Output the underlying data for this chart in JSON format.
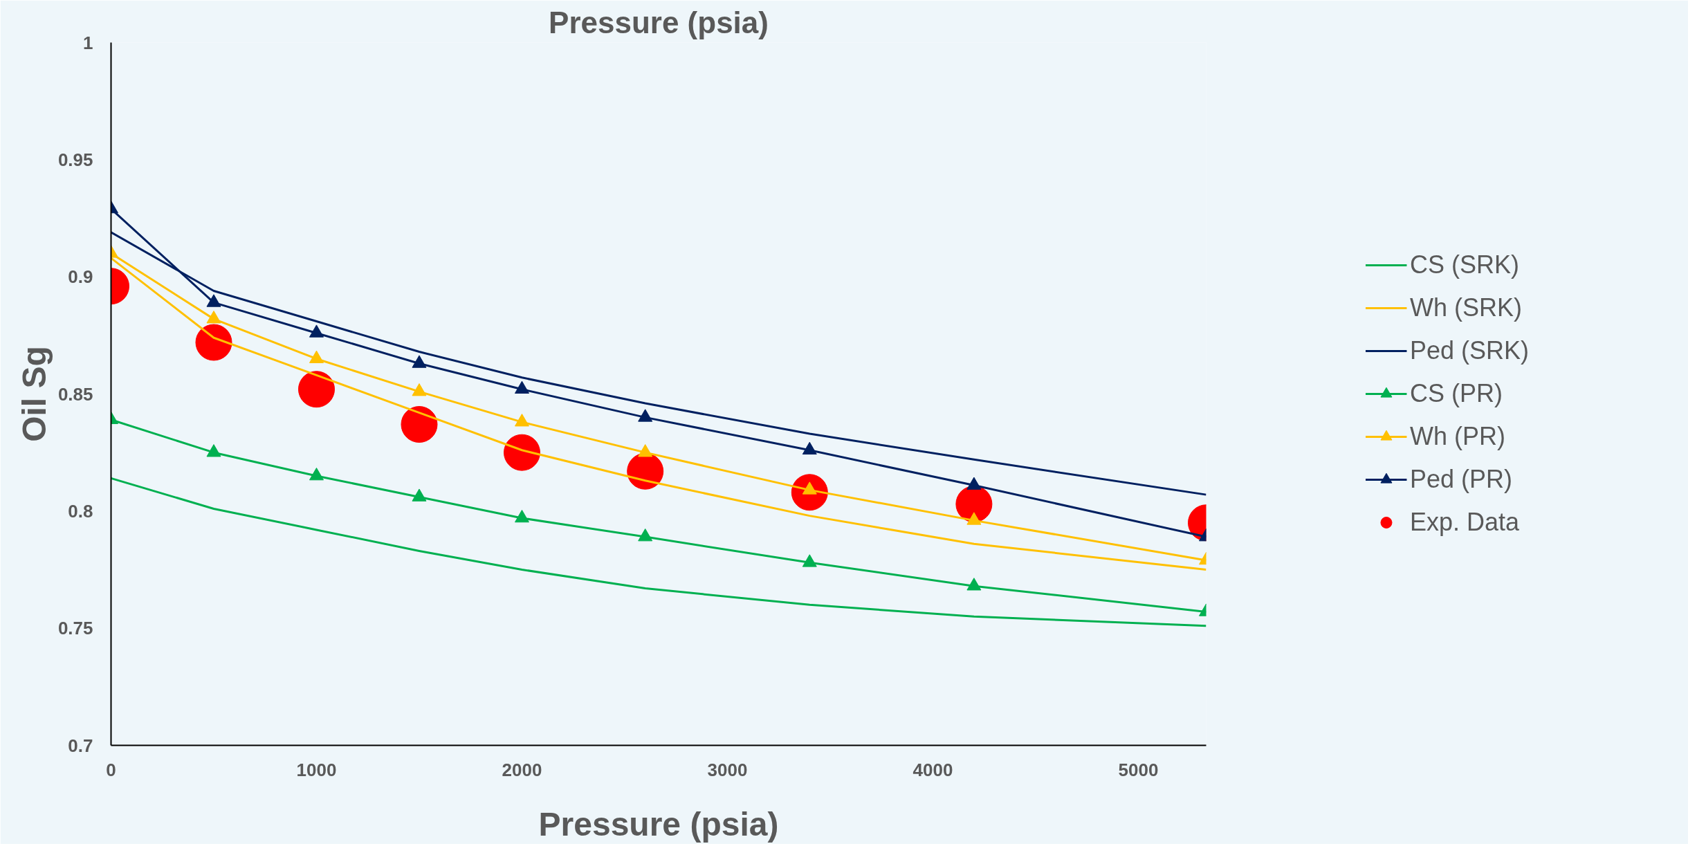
{
  "chart_data": {
    "type": "line",
    "title": "Pressure (psia)",
    "xlabel": "Pressure (psia)",
    "ylabel": "Oil Sg",
    "x": [
      0,
      500,
      1000,
      1500,
      2000,
      2600,
      3400,
      4200,
      5330
    ],
    "xlim": [
      0,
      5330
    ],
    "xticks": [
      0,
      1000,
      2000,
      3000,
      4000,
      5000
    ],
    "ylim": [
      0.7,
      1
    ],
    "yticks": [
      0.7,
      0.75,
      0.8,
      0.85,
      0.9,
      0.95,
      1
    ],
    "grid": false,
    "legend": "right",
    "series": [
      {
        "name": "CS (SRK)",
        "color": "#00b050",
        "marker": "none",
        "values": [
          0.814,
          0.801,
          0.792,
          0.783,
          0.775,
          0.767,
          0.76,
          0.755,
          0.751
        ]
      },
      {
        "name": "Wh (SRK)",
        "color": "#ffc000",
        "marker": "none",
        "values": [
          0.908,
          0.874,
          0.858,
          0.842,
          0.826,
          0.813,
          0.798,
          0.786,
          0.775
        ]
      },
      {
        "name": "Ped (SRK)",
        "color": "#002060",
        "marker": "none",
        "values": [
          0.919,
          0.894,
          0.881,
          0.868,
          0.857,
          0.846,
          0.833,
          0.822,
          0.807
        ]
      },
      {
        "name": "CS (PR)",
        "color": "#00b050",
        "marker": "triangle",
        "values": [
          0.839,
          0.825,
          0.815,
          0.806,
          0.797,
          0.789,
          0.778,
          0.768,
          0.757
        ]
      },
      {
        "name": "Wh (PR)",
        "color": "#ffc000",
        "marker": "triangle",
        "values": [
          0.91,
          0.882,
          0.865,
          0.851,
          0.838,
          0.825,
          0.809,
          0.796,
          0.779
        ]
      },
      {
        "name": "Ped (PR)",
        "color": "#002060",
        "marker": "triangle",
        "values": [
          0.929,
          0.889,
          0.876,
          0.863,
          0.852,
          0.84,
          0.826,
          0.811,
          0.789
        ]
      },
      {
        "name": "Exp. Data",
        "type": "scatter",
        "color": "#ff0000",
        "marker": "circle",
        "values": [
          0.896,
          0.872,
          0.852,
          0.837,
          0.825,
          0.817,
          0.808,
          0.803,
          0.795
        ]
      }
    ]
  }
}
